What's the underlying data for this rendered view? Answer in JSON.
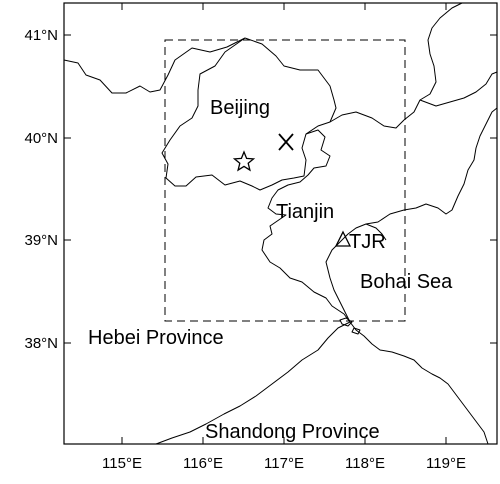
{
  "map": {
    "labels": {
      "beijing": "Beijing",
      "tianjin": "Tianjin",
      "bohai_sea": "Bohai Sea",
      "hebei": "Hebei Province",
      "shandong": "Shandong Province",
      "station": "TJR"
    },
    "lat_ticks": [
      "41°N",
      "40°N",
      "39°N",
      "38°N"
    ],
    "lon_ticks": [
      "115°E",
      "116°E",
      "117°E",
      "118°E",
      "119°E"
    ],
    "markers": {
      "star": "star-marker",
      "cross": "cross-marker",
      "triangle": "triangle-marker"
    }
  }
}
